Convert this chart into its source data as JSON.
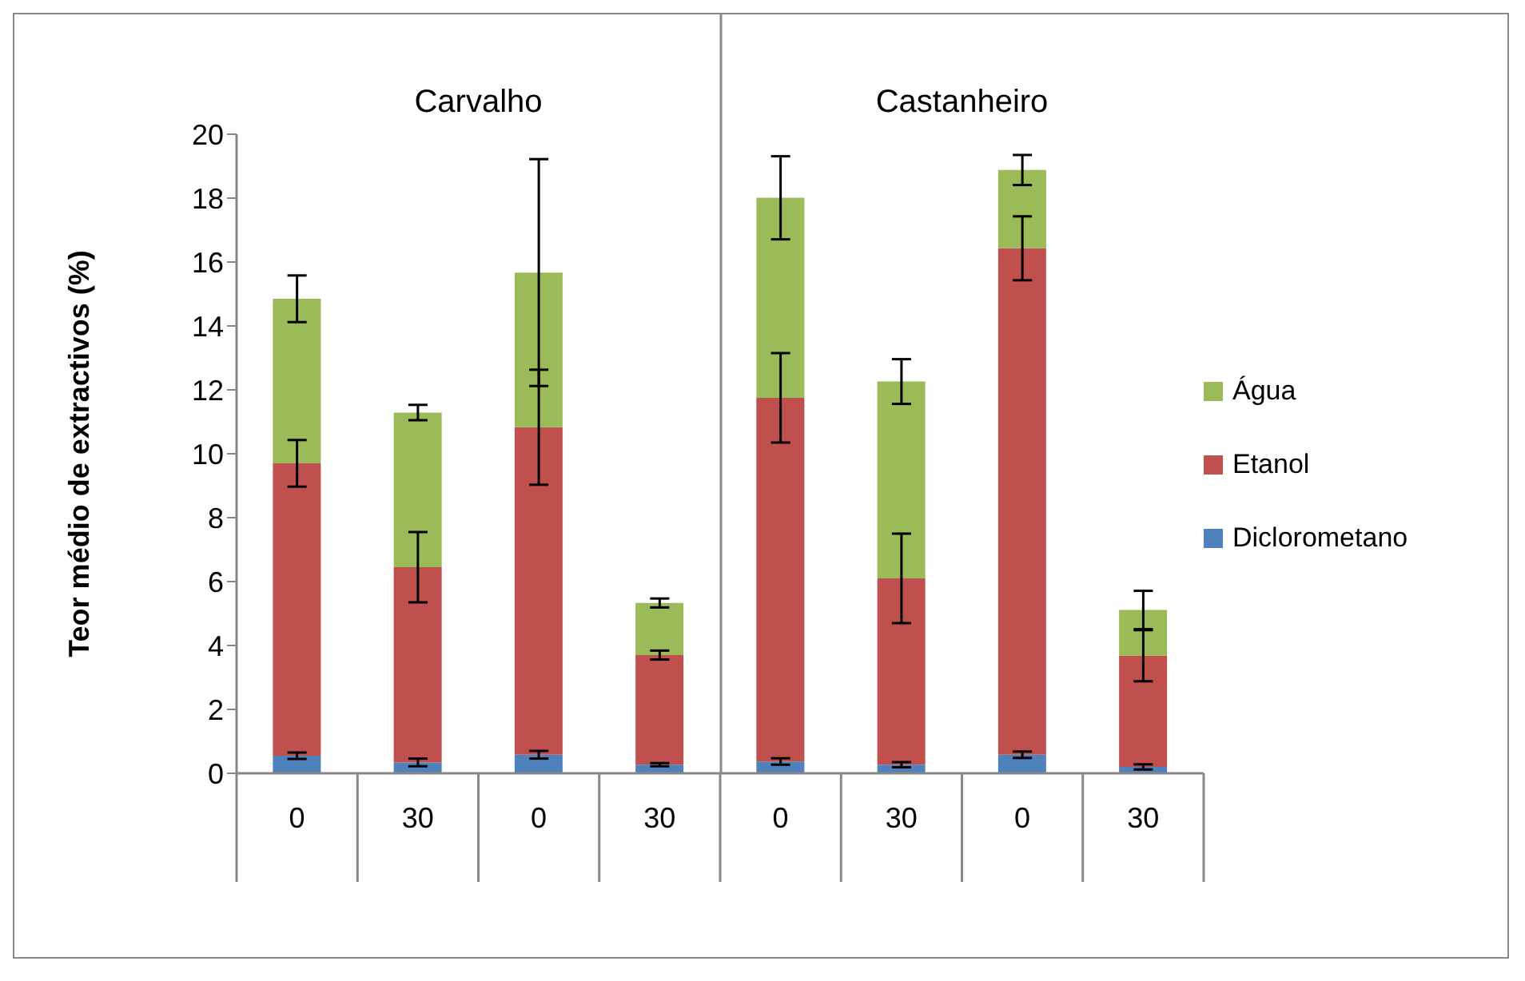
{
  "chart_data": {
    "type": "bar",
    "stacked": true,
    "ylabel": "Teor médio de extractivos (%)",
    "categories": [
      "0",
      "30",
      "0",
      "30",
      "0",
      "30",
      "0",
      "30"
    ],
    "series": [
      {
        "name": "Diclorometano",
        "color": "#4f81bd",
        "values": [
          0.55,
          0.34,
          0.58,
          0.27,
          0.37,
          0.27,
          0.58,
          0.2
        ],
        "errors": [
          0.1,
          0.12,
          0.12,
          0.05,
          0.1,
          0.08,
          0.1,
          0.08
        ]
      },
      {
        "name": "Etanol",
        "color": "#c0504d",
        "values": [
          9.15,
          6.11,
          10.25,
          3.43,
          11.38,
          5.83,
          15.85,
          3.48
        ],
        "errors": [
          0.73,
          1.1,
          1.8,
          0.14,
          1.4,
          1.4,
          1.0,
          0.8
        ]
      },
      {
        "name": "Água",
        "color": "#9bbb59",
        "values": [
          5.15,
          4.84,
          4.84,
          1.63,
          6.26,
          6.16,
          2.45,
          1.43
        ],
        "errors": [
          0.73,
          0.24,
          3.55,
          0.14,
          1.3,
          0.7,
          0.47,
          0.6
        ]
      }
    ],
    "ylim": [
      0,
      20
    ],
    "yticks": [
      0,
      2,
      4,
      6,
      8,
      10,
      12,
      14,
      16,
      18,
      20
    ],
    "grid": false,
    "legend": "right",
    "annotations": [
      "Carvalho",
      "Castanheiro"
    ]
  }
}
